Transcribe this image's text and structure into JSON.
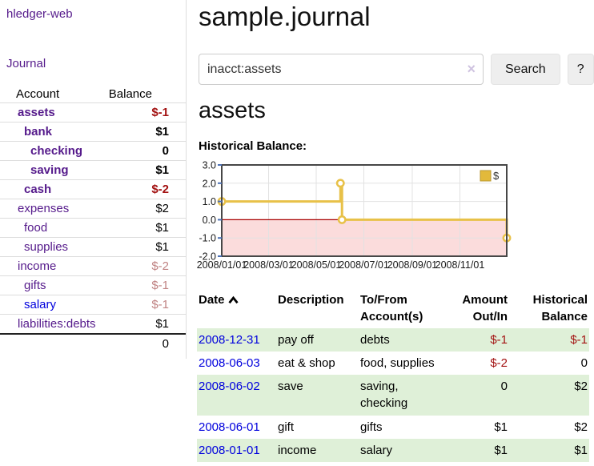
{
  "app": {
    "brand": "hledger-web"
  },
  "colors": {
    "link_purple": "#551a8b",
    "link_blue": "#0000dd",
    "negative_strong": "#a31212",
    "negative_muted": "#c08383",
    "row_green": "#dff0d8",
    "chart_line_gold": "#e8c148",
    "chart_legend_gold": "#e2b93b",
    "chart_negative_fill": "#fbdcdc",
    "chart_zero_line": "#aa0000",
    "chart_border": "#474747",
    "chart_grid": "#e2e2e2",
    "axis_tick_blue": "#4a6fb5",
    "button_bg": "#eeeeee"
  },
  "sidebar": {
    "nav": [
      {
        "label": "Journal"
      }
    ],
    "accounts_table": {
      "headers": {
        "account": "Account",
        "balance": "Balance"
      },
      "rows": [
        {
          "name": "assets",
          "indent": 1,
          "bold": true,
          "link_color": "purple",
          "balance": "$-1",
          "balance_style": "neg-strong"
        },
        {
          "name": "bank",
          "indent": 2,
          "bold": true,
          "link_color": "purple",
          "balance": "$1",
          "balance_style": "normal"
        },
        {
          "name": "checking",
          "indent": 3,
          "bold": true,
          "link_color": "purple",
          "balance": "0",
          "balance_style": "normal"
        },
        {
          "name": "saving",
          "indent": 3,
          "bold": true,
          "link_color": "purple",
          "balance": "$1",
          "balance_style": "normal"
        },
        {
          "name": "cash",
          "indent": 2,
          "bold": true,
          "link_color": "purple",
          "balance": "$-2",
          "balance_style": "neg-strong"
        },
        {
          "name": "expenses",
          "indent": 1,
          "bold": false,
          "link_color": "purple",
          "balance": "$2",
          "balance_style": "normal"
        },
        {
          "name": "food",
          "indent": 2,
          "bold": false,
          "link_color": "purple",
          "balance": "$1",
          "balance_style": "normal"
        },
        {
          "name": "supplies",
          "indent": 2,
          "bold": false,
          "link_color": "purple",
          "balance": "$1",
          "balance_style": "normal"
        },
        {
          "name": "income",
          "indent": 1,
          "bold": false,
          "link_color": "purple",
          "balance": "$-2",
          "balance_style": "neg-muted"
        },
        {
          "name": "gifts",
          "indent": 2,
          "bold": false,
          "link_color": "purple",
          "balance": "$-1",
          "balance_style": "neg-muted"
        },
        {
          "name": "salary",
          "indent": 2,
          "bold": false,
          "link_color": "blue",
          "balance": "$-1",
          "balance_style": "neg-muted"
        },
        {
          "name": "liabilities:debts",
          "indent": 1,
          "bold": false,
          "link_color": "purple",
          "balance": "$1",
          "balance_style": "normal"
        }
      ],
      "total": "0"
    }
  },
  "header": {
    "title": "sample.journal"
  },
  "search": {
    "value": "inacct:assets",
    "clear_icon": "×",
    "button": "Search",
    "help_button": "?"
  },
  "account_page": {
    "heading": "assets",
    "chart_label": "Historical Balance:"
  },
  "chart_data": {
    "type": "line",
    "title": "Historical Balance:",
    "step": true,
    "series": [
      {
        "name": "$",
        "points": [
          [
            "2008-01-01",
            1
          ],
          [
            "2008-06-01",
            2
          ],
          [
            "2008-06-03",
            0
          ],
          [
            "2008-12-31",
            -1
          ]
        ]
      }
    ],
    "x_range": [
      "2008-01-01",
      "2008-12-31"
    ],
    "ylim": [
      -2,
      3
    ],
    "y_ticks": [
      "3.0",
      "2.0",
      "1.0",
      "0.0",
      "-1.0",
      "-2.0"
    ],
    "x_ticks": [
      {
        "date": "2008-01-01",
        "label": "2008/01/01"
      },
      {
        "date": "2008-03-01",
        "label": "2008/03/01"
      },
      {
        "date": "2008-05-01",
        "label": "2008/05/01"
      },
      {
        "date": "2008-07-01",
        "label": "2008/07/01"
      },
      {
        "date": "2008-09-01",
        "label": "2008/09/01"
      },
      {
        "date": "2008-11-01",
        "label": "2008/11/01"
      }
    ],
    "legend": {
      "position": "top-right",
      "entries": [
        "$"
      ]
    },
    "grid": true,
    "negative_region": true
  },
  "transactions": {
    "headers": [
      {
        "label": "Date",
        "sort": "asc",
        "align": "left"
      },
      {
        "label": "Description",
        "align": "left"
      },
      {
        "label": "To/From Account(s)",
        "align": "left"
      },
      {
        "label": "Amount Out/In",
        "align": "right"
      },
      {
        "label": "Historical Balance",
        "align": "right"
      }
    ],
    "rows": [
      {
        "date": "2008-12-31",
        "description": "pay off",
        "accounts": "debts",
        "amount": "$-1",
        "amount_neg": true,
        "balance": "$-1",
        "balance_neg": true
      },
      {
        "date": "2008-06-03",
        "description": "eat & shop",
        "accounts": "food, supplies",
        "amount": "$-2",
        "amount_neg": true,
        "balance": "0",
        "balance_neg": false
      },
      {
        "date": "2008-06-02",
        "description": "save",
        "accounts": "saving, checking",
        "amount": "0",
        "amount_neg": false,
        "balance": "$2",
        "balance_neg": false
      },
      {
        "date": "2008-06-01",
        "description": "gift",
        "accounts": "gifts",
        "amount": "$1",
        "amount_neg": false,
        "balance": "$2",
        "balance_neg": false
      },
      {
        "date": "2008-01-01",
        "description": "income",
        "accounts": "salary",
        "amount": "$1",
        "amount_neg": false,
        "balance": "$1",
        "balance_neg": false
      }
    ]
  }
}
